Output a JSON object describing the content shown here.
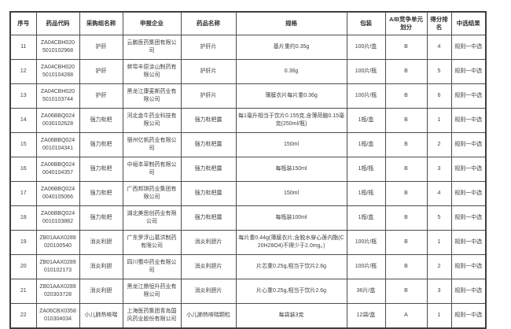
{
  "table": {
    "headers": [
      "序号",
      "药品代码",
      "采购组名称",
      "申报企业",
      "药品名称",
      "规格",
      "包装",
      "A/B竞争单元划分",
      "得分排名",
      "中选结果"
    ],
    "rows": [
      {
        "serial": "11",
        "code": "ZA04CBH020\n5010102968",
        "group": "护肝",
        "company": "云鹏医药集团有限公司",
        "drug": "护肝片",
        "spec": "基片重约0.35g",
        "pack": "100片/盒",
        "unit": "B",
        "rank": "4",
        "result": "规则一中选"
      },
      {
        "serial": "12",
        "code": "ZA04CBH020\n5010104288",
        "group": "护肝",
        "company": "蚌埠丰原涂山制药有限公司",
        "drug": "护肝片",
        "spec": "0.36g",
        "pack": "100片/瓶",
        "unit": "B",
        "rank": "5",
        "result": "规则一中选"
      },
      {
        "serial": "13",
        "code": "ZA04CBH020\n5010103744",
        "group": "护肝",
        "company": "黑龙江康麦斯药业有限公司",
        "drug": "护肝片",
        "spec": "薄膜衣片每片重0.36g",
        "pack": "100片/瓶",
        "unit": "B",
        "rank": "6",
        "result": "规则一中选"
      },
      {
        "serial": "14",
        "code": "ZA06BBQ024\n0030102628",
        "group": "强力枇杷",
        "company": "河北金牛药业科技有限公司",
        "drug": "强力枇杷露",
        "spec": "每1毫升相当于饮片0.155克,含薄荷脑0.15毫克(250ml/瓶)",
        "pack": "1瓶/盒",
        "unit": "B",
        "rank": "1",
        "result": "规则一中选"
      },
      {
        "serial": "15",
        "code": "ZA06BBQ024\n0010104341",
        "group": "强力枇杷",
        "company": "宿州亿帆药业有限公司",
        "drug": "强力枇杷露",
        "spec": "150ml",
        "pack": "1瓶/盒",
        "unit": "B",
        "rank": "2",
        "result": "规则一中选"
      },
      {
        "serial": "16",
        "code": "ZA06BBQ024\n0040104357",
        "group": "强力枇杷",
        "company": "中峘本草制药有限公司",
        "drug": "强力枇杷露",
        "spec": "每瓶装150ml",
        "pack": "1瓶/瓶",
        "unit": "B",
        "rank": "3",
        "result": "规则一中选"
      },
      {
        "serial": "17",
        "code": "ZA06BBQ024\n0040105066",
        "group": "强力枇杷",
        "company": "广西邦琪药业集团有限公司",
        "drug": "强力枇杷露",
        "spec": "150ml",
        "pack": "1瓶/瓶",
        "unit": "B",
        "rank": "4",
        "result": "规则一中选"
      },
      {
        "serial": "18",
        "code": "ZA06BBQ024\n0010103882",
        "group": "强力枇杷",
        "company": "湖北美思创药业有限公司",
        "drug": "强力枇杷露",
        "spec": "每瓶装100ml",
        "pack": "1瓶/盒",
        "unit": "B",
        "rank": "5",
        "result": "规则一中选"
      },
      {
        "serial": "19",
        "code": "ZB01AAX0289\n020100540",
        "group": "消炎利胆",
        "company": "广东罗浮山葛洪制药有限公司",
        "drug": "消炎利胆片",
        "spec": "每片重0.44g(薄膜衣片,含脱水穿心莲内酯(C20H28O4)不得少于2.0mg。)",
        "pack": "100片/瓶",
        "unit": "B",
        "rank": "1",
        "result": "规则一中选"
      },
      {
        "serial": "20",
        "code": "ZB01AAX0289\n010102173",
        "group": "消炎利胆",
        "company": "四川蜀中药业有限公司",
        "drug": "消炎利胆片",
        "spec": "片芯重0.25g,相当于饮片2.6g",
        "pack": "100片/瓶",
        "unit": "B",
        "rank": "2",
        "result": "规则一中选"
      },
      {
        "serial": "21",
        "code": "ZB01AAX0289\n020303728",
        "group": "消炎利胆",
        "company": "黑龙江鼎恒升药业有限公司",
        "drug": "消炎利胆片",
        "spec": "片心重0.25g,相当于饮片2.6g",
        "pack": "36片/盒",
        "unit": "B",
        "rank": "3",
        "result": "规则一中选"
      },
      {
        "serial": "22",
        "code": "ZA06CBX0358\n010304034",
        "group": "小儿肺热咳喘",
        "company": "上海医药集团青岛国风药业股份有限公司",
        "drug": "小儿肺热咳喘颗粒",
        "spec": "每袋装3克",
        "pack": "12袋/盒",
        "unit": "A",
        "rank": "1",
        "result": "规则一中选"
      }
    ]
  }
}
